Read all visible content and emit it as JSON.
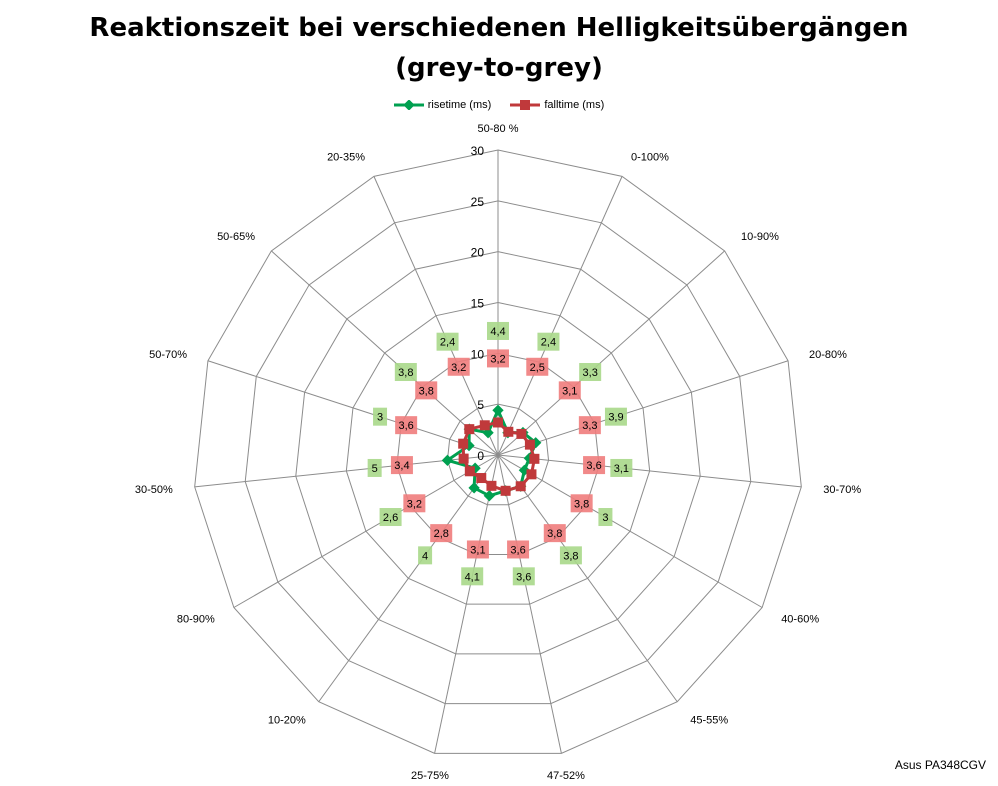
{
  "chart_data": {
    "type": "radar",
    "title_lines": [
      "Reaktionszeit bei verschiedenen Helligkeitsübergängen",
      "(grey-to-grey)"
    ],
    "categories": [
      "50-80 %",
      "0-100%",
      "10-90%",
      "20-80%",
      "30-70%",
      "40-60%",
      "45-55%",
      "47-52%",
      "25-75%",
      "10-20%",
      "80-90%",
      "30-50%",
      "50-70%",
      "50-65%",
      "20-35%"
    ],
    "ylim": [
      0,
      30
    ],
    "ticks": [
      0,
      5,
      10,
      15,
      20,
      25,
      30
    ],
    "tick_labels": [
      "0",
      "5",
      "10",
      "15",
      "20",
      "25",
      "30"
    ],
    "legend_position": "top",
    "grid": true,
    "series": [
      {
        "name": "risetime (ms)",
        "color": "#00a050",
        "label_bg": "#a8d88a",
        "values": [
          4.4,
          2.4,
          3.3,
          3.9,
          3.1,
          3.0,
          3.8,
          3.6,
          4.1,
          4.0,
          2.6,
          5.0,
          3.0,
          3.8,
          2.4
        ],
        "labels": [
          "4,4",
          "2,4",
          "3,3",
          "3,9",
          "3,1",
          "3",
          "3,8",
          "3,6",
          "4,1",
          "4",
          "2,6",
          "5",
          "3",
          "3,8",
          "2,4"
        ]
      },
      {
        "name": "falltime (ms)",
        "color": "#c0393b",
        "label_bg": "#f07c7c",
        "values": [
          3.2,
          2.5,
          3.1,
          3.3,
          3.6,
          3.8,
          3.8,
          3.6,
          3.1,
          2.8,
          3.2,
          3.4,
          3.6,
          3.8,
          3.2
        ],
        "labels": [
          "3,2",
          "2,5",
          "3,1",
          "3,3",
          "3,6",
          "3,8",
          "3,8",
          "3,6",
          "3,1",
          "2,8",
          "3,2",
          "3,4",
          "3,6",
          "3,8",
          "3,2"
        ]
      }
    ]
  },
  "watermark": "Asus PA348CGV"
}
